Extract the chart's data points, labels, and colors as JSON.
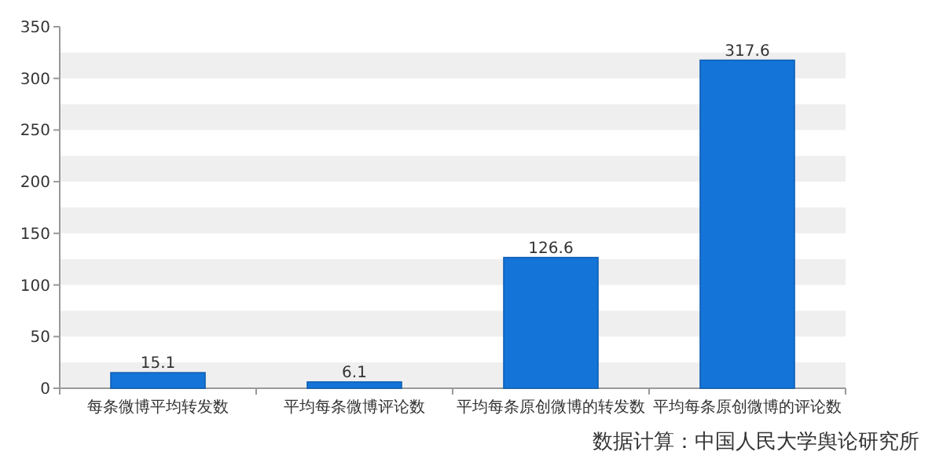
{
  "chart_data": {
    "type": "bar",
    "categories": [
      "每条微博平均转发数",
      "平均每条微博评论数",
      "平均每条原创微博的转发数",
      "平均每条原创微博的评论数"
    ],
    "values": [
      15.1,
      6.1,
      126.6,
      317.6
    ],
    "color": "#1474d8",
    "ylim": [
      0,
      350
    ],
    "yticks": [
      0,
      50,
      100,
      150,
      200,
      250,
      300,
      350
    ],
    "bands": [
      {
        "axis": "y",
        "from": 0,
        "to": 25,
        "color": "#efefef"
      },
      {
        "axis": "y",
        "from": 50,
        "to": 75,
        "color": "#efefef"
      },
      {
        "axis": "y",
        "from": 100,
        "to": 125,
        "color": "#efefef"
      },
      {
        "axis": "y",
        "from": 150,
        "to": 175,
        "color": "#efefef"
      },
      {
        "axis": "y",
        "from": 200,
        "to": 225,
        "color": "#efefef"
      },
      {
        "axis": "y",
        "from": 250,
        "to": 275,
        "color": "#efefef"
      },
      {
        "axis": "y",
        "from": 300,
        "to": 325,
        "color": "#efefef"
      }
    ],
    "data_labels": true,
    "annotations": [
      "数据计算：中国人民大学舆论研究所"
    ]
  }
}
